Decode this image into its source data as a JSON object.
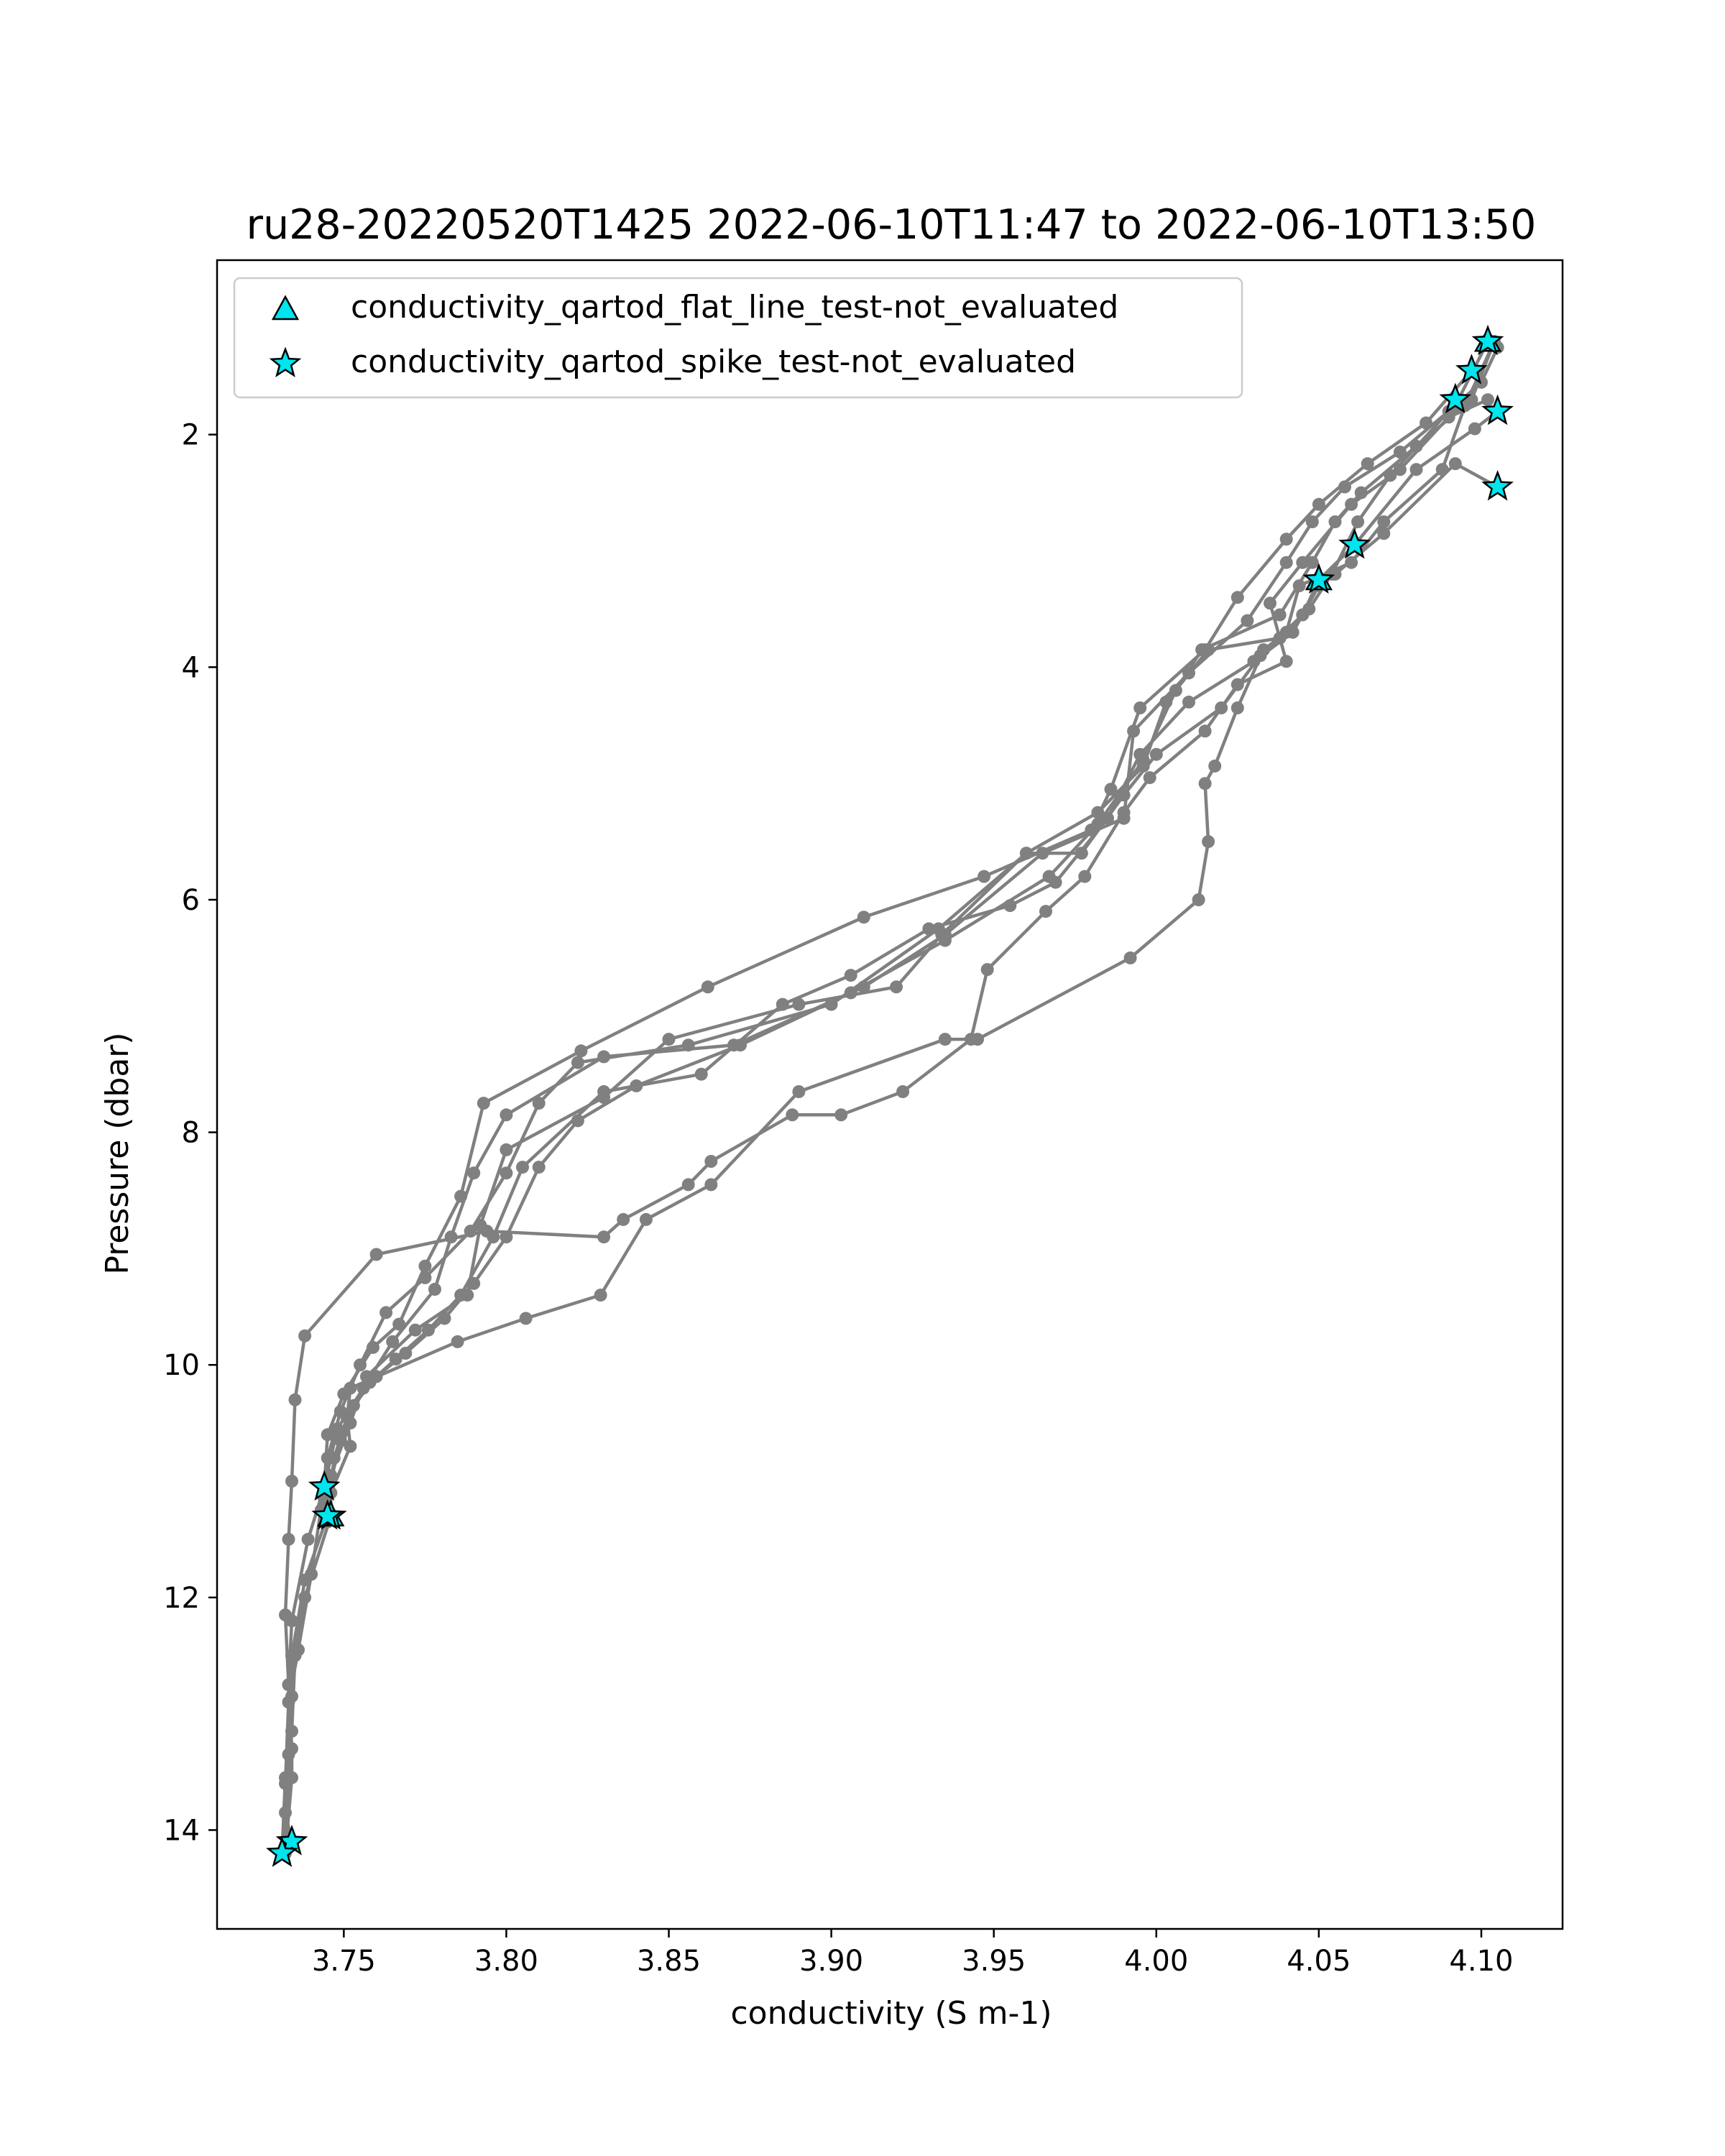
{
  "chart_data": {
    "type": "line",
    "title": "ru28-20220520T1425 2022-06-10T11:47 to 2022-06-10T13:50",
    "xlabel": "conductivity (S m-1)",
    "ylabel": "Pressure (dbar)",
    "xlim": [
      3.711,
      4.125
    ],
    "ylim": [
      14.85,
      0.5
    ],
    "y_inverted": true,
    "xticks": [
      "3.75",
      "3.80",
      "3.85",
      "3.90",
      "3.95",
      "4.00",
      "4.05",
      "4.10"
    ],
    "xtick_values": [
      3.75,
      3.8,
      3.85,
      3.9,
      3.95,
      4.0,
      4.05,
      4.1
    ],
    "yticks": [
      "2",
      "4",
      "6",
      "8",
      "10",
      "12",
      "14"
    ],
    "ytick_values": [
      2,
      4,
      6,
      8,
      10,
      12,
      14
    ],
    "grid": false,
    "legend_position": "top-left",
    "colors": {
      "profile_line": "#808080",
      "flag_marker_fill": "#00e5ee",
      "flag_marker_edge": "#000000"
    },
    "legend": [
      {
        "marker": "triangle",
        "label": "conductivity_qartod_flat_line_test-not_evaluated"
      },
      {
        "marker": "star",
        "label": "conductivity_qartod_spike_test-not_evaluated"
      }
    ],
    "series": [
      {
        "points": [
          [
            4.102,
            1.2
          ],
          [
            4.092,
            1.75
          ],
          [
            4.075,
            2.15
          ],
          [
            4.058,
            2.45
          ],
          [
            4.048,
            2.75
          ],
          [
            4.04,
            3.1
          ],
          [
            4.028,
            3.6
          ],
          [
            4.01,
            4.05
          ],
          [
            3.993,
            4.55
          ],
          [
            3.99,
            5.3
          ],
          [
            3.965,
            5.6
          ],
          [
            3.935,
            6.3
          ],
          [
            3.91,
            6.75
          ],
          [
            3.87,
            7.25
          ],
          [
            3.83,
            7.35
          ],
          [
            3.8,
            7.85
          ],
          [
            3.79,
            8.35
          ],
          [
            3.783,
            8.9
          ],
          [
            3.778,
            9.35
          ],
          [
            3.765,
            9.8
          ],
          [
            3.756,
            10.2
          ],
          [
            3.748,
            10.55
          ],
          [
            3.744,
            11.05
          ],
          [
            3.74,
            11.8
          ],
          [
            3.736,
            12.45
          ],
          [
            3.733,
            12.9
          ],
          [
            3.732,
            13.6
          ],
          [
            3.731,
            14.2
          ]
        ]
      },
      {
        "points": [
          [
            4.097,
            1.45
          ],
          [
            4.083,
            1.9
          ],
          [
            4.065,
            2.25
          ],
          [
            4.05,
            2.6
          ],
          [
            4.04,
            2.9
          ],
          [
            4.025,
            3.4
          ],
          [
            4.015,
            3.85
          ],
          [
            3.995,
            4.35
          ],
          [
            3.986,
            5.05
          ],
          [
            3.98,
            5.4
          ],
          [
            3.947,
            5.8
          ],
          [
            3.91,
            6.15
          ],
          [
            3.862,
            6.75
          ],
          [
            3.823,
            7.3
          ],
          [
            3.793,
            7.75
          ],
          [
            3.786,
            8.55
          ],
          [
            3.775,
            9.15
          ],
          [
            3.767,
            9.65
          ],
          [
            3.759,
            9.85
          ],
          [
            3.75,
            10.25
          ],
          [
            3.745,
            10.6
          ],
          [
            3.744,
            11.05
          ],
          [
            3.739,
            11.5
          ],
          [
            3.734,
            12.2
          ],
          [
            3.733,
            12.75
          ],
          [
            3.733,
            13.35
          ],
          [
            3.732,
            13.85
          ],
          [
            3.734,
            14.1
          ]
        ]
      },
      {
        "points": [
          [
            4.105,
            1.8
          ],
          [
            4.098,
            1.95
          ],
          [
            4.08,
            2.3
          ],
          [
            4.061,
            2.95
          ],
          [
            4.05,
            3.25
          ],
          [
            4.045,
            3.55
          ],
          [
            4.032,
            3.9
          ],
          [
            4.02,
            4.35
          ],
          [
            4.0,
            4.75
          ],
          [
            3.99,
            5.1
          ],
          [
            3.977,
            5.6
          ],
          [
            3.96,
            5.6
          ],
          [
            3.934,
            6.3
          ],
          [
            3.92,
            6.75
          ],
          [
            3.89,
            6.9
          ],
          [
            3.85,
            7.2
          ],
          [
            3.83,
            7.7
          ],
          [
            3.8,
            8.15
          ],
          [
            3.792,
            8.8
          ],
          [
            3.788,
            9.4
          ],
          [
            3.772,
            9.7
          ],
          [
            3.757,
            10.1
          ],
          [
            3.752,
            10.5
          ],
          [
            3.746,
            10.95
          ],
          [
            3.746,
            11.3
          ],
          [
            3.738,
            12.0
          ],
          [
            3.735,
            12.5
          ],
          [
            3.734,
            13.15
          ],
          [
            3.732,
            13.55
          ],
          [
            3.731,
            14.2
          ]
        ]
      },
      {
        "points": [
          [
            4.105,
            2.45
          ],
          [
            4.092,
            2.25
          ],
          [
            4.07,
            2.85
          ],
          [
            4.055,
            3.2
          ],
          [
            4.05,
            3.3
          ],
          [
            4.042,
            3.7
          ],
          [
            4.03,
            3.95
          ],
          [
            4.01,
            4.3
          ],
          [
            3.995,
            4.75
          ],
          [
            3.985,
            5.3
          ],
          [
            3.969,
            5.85
          ],
          [
            3.955,
            6.05
          ],
          [
            3.93,
            6.25
          ],
          [
            3.906,
            6.65
          ],
          [
            3.885,
            6.9
          ],
          [
            3.86,
            7.5
          ],
          [
            3.83,
            7.65
          ],
          [
            3.805,
            8.3
          ],
          [
            3.796,
            8.9
          ],
          [
            3.786,
            9.4
          ],
          [
            3.776,
            9.7
          ],
          [
            3.766,
            9.95
          ],
          [
            3.758,
            10.15
          ],
          [
            3.751,
            10.45
          ],
          [
            3.747,
            10.8
          ],
          [
            3.745,
            11.3
          ],
          [
            3.738,
            11.85
          ],
          [
            3.734,
            12.5
          ],
          [
            3.734,
            12.85
          ],
          [
            3.733,
            13.55
          ],
          [
            3.732,
            14.15
          ]
        ]
      },
      {
        "points": [
          [
            4.104,
            1.2
          ],
          [
            4.097,
            1.7
          ],
          [
            4.08,
            2.1
          ],
          [
            4.063,
            2.5
          ],
          [
            4.055,
            2.75
          ],
          [
            4.048,
            3.1
          ],
          [
            4.038,
            3.55
          ],
          [
            4.014,
            3.85
          ],
          [
            4.006,
            4.2
          ],
          [
            3.996,
            4.8
          ],
          [
            3.982,
            5.35
          ],
          [
            3.967,
            5.8
          ],
          [
            3.935,
            6.35
          ],
          [
            3.906,
            6.8
          ],
          [
            3.872,
            7.25
          ],
          [
            3.84,
            7.6
          ],
          [
            3.822,
            7.9
          ],
          [
            3.81,
            8.3
          ],
          [
            3.8,
            8.9
          ],
          [
            3.79,
            9.3
          ],
          [
            3.781,
            9.6
          ],
          [
            3.769,
            9.9
          ],
          [
            3.76,
            10.1
          ],
          [
            3.753,
            10.35
          ],
          [
            3.749,
            10.65
          ],
          [
            3.746,
            11.0
          ],
          [
            3.743,
            11.25
          ]
        ]
      },
      {
        "points": [
          [
            4.105,
            1.25
          ],
          [
            4.1,
            1.55
          ],
          [
            4.09,
            1.8
          ],
          [
            4.072,
            2.35
          ],
          [
            4.062,
            2.75
          ],
          [
            4.054,
            3.2
          ],
          [
            4.047,
            3.5
          ],
          [
            4.038,
            3.75
          ],
          [
            4.016,
            3.85
          ],
          [
            4.003,
            4.3
          ],
          [
            3.996,
            4.85
          ],
          [
            3.982,
            5.25
          ],
          [
            3.96,
            5.6
          ],
          [
            3.933,
            6.25
          ],
          [
            3.9,
            6.9
          ],
          [
            3.856,
            7.25
          ],
          [
            3.822,
            7.4
          ],
          [
            3.81,
            7.75
          ],
          [
            3.8,
            8.35
          ],
          [
            3.789,
            8.85
          ],
          [
            3.775,
            9.25
          ],
          [
            3.763,
            9.55
          ],
          [
            3.755,
            10.0
          ],
          [
            3.749,
            10.4
          ],
          [
            3.745,
            10.8
          ],
          [
            3.744,
            11.15
          ]
        ]
      },
      {
        "points": [
          [
            4.102,
            1.7
          ],
          [
            4.09,
            1.85
          ],
          [
            4.075,
            2.3
          ],
          [
            4.06,
            2.6
          ],
          [
            4.045,
            3.1
          ],
          [
            4.035,
            3.45
          ],
          [
            4.04,
            3.95
          ],
          [
            4.025,
            4.15
          ],
          [
            4.015,
            4.55
          ],
          [
            3.998,
            4.95
          ],
          [
            3.99,
            5.25
          ],
          [
            3.978,
            5.8
          ],
          [
            3.966,
            6.1
          ],
          [
            3.948,
            6.6
          ],
          [
            3.943,
            7.2
          ],
          [
            3.922,
            7.65
          ],
          [
            3.903,
            7.85
          ],
          [
            3.888,
            7.85
          ],
          [
            3.863,
            8.25
          ],
          [
            3.856,
            8.45
          ],
          [
            3.836,
            8.75
          ],
          [
            3.83,
            8.9
          ],
          [
            3.794,
            8.85
          ],
          [
            3.76,
            9.05
          ],
          [
            3.738,
            9.75
          ],
          [
            3.735,
            10.3
          ],
          [
            3.734,
            11.0
          ],
          [
            3.733,
            11.5
          ],
          [
            3.732,
            12.15
          ],
          [
            3.733,
            12.75
          ],
          [
            3.734,
            13.3
          ],
          [
            3.734,
            13.55
          ],
          [
            3.732,
            14.2
          ]
        ]
      },
      {
        "points": [
          [
            4.104,
            1.2
          ],
          [
            4.095,
            1.75
          ],
          [
            4.088,
            2.3
          ],
          [
            4.07,
            2.75
          ],
          [
            4.06,
            3.1
          ],
          [
            4.044,
            3.3
          ],
          [
            4.04,
            3.7
          ],
          [
            4.033,
            3.85
          ],
          [
            4.025,
            4.35
          ],
          [
            4.018,
            4.85
          ],
          [
            4.015,
            5.0
          ],
          [
            4.016,
            5.5
          ],
          [
            4.013,
            6.0
          ],
          [
            3.992,
            6.5
          ],
          [
            3.945,
            7.2
          ],
          [
            3.935,
            7.2
          ],
          [
            3.89,
            7.65
          ],
          [
            3.863,
            8.45
          ],
          [
            3.843,
            8.75
          ],
          [
            3.829,
            9.4
          ],
          [
            3.806,
            9.6
          ],
          [
            3.785,
            9.8
          ],
          [
            3.752,
            10.2
          ],
          [
            3.751,
            10.45
          ],
          [
            3.752,
            10.7
          ],
          [
            3.746,
            11.1
          ],
          [
            3.745,
            11.35
          ]
        ]
      }
    ],
    "flagged_points": [
      {
        "test": "spike",
        "points": [
          [
            4.102,
            1.2
          ],
          [
            4.097,
            1.45
          ],
          [
            4.092,
            1.7
          ],
          [
            4.105,
            1.8
          ],
          [
            4.105,
            2.45
          ],
          [
            4.061,
            2.95
          ],
          [
            4.05,
            3.25
          ],
          [
            3.744,
            11.05
          ],
          [
            3.746,
            11.3
          ],
          [
            3.745,
            11.3
          ],
          [
            3.734,
            14.1
          ],
          [
            3.731,
            14.2
          ]
        ]
      },
      {
        "test": "flat_line",
        "points": [
          [
            4.102,
            1.2
          ],
          [
            4.05,
            3.25
          ],
          [
            3.746,
            11.3
          ]
        ]
      }
    ]
  }
}
